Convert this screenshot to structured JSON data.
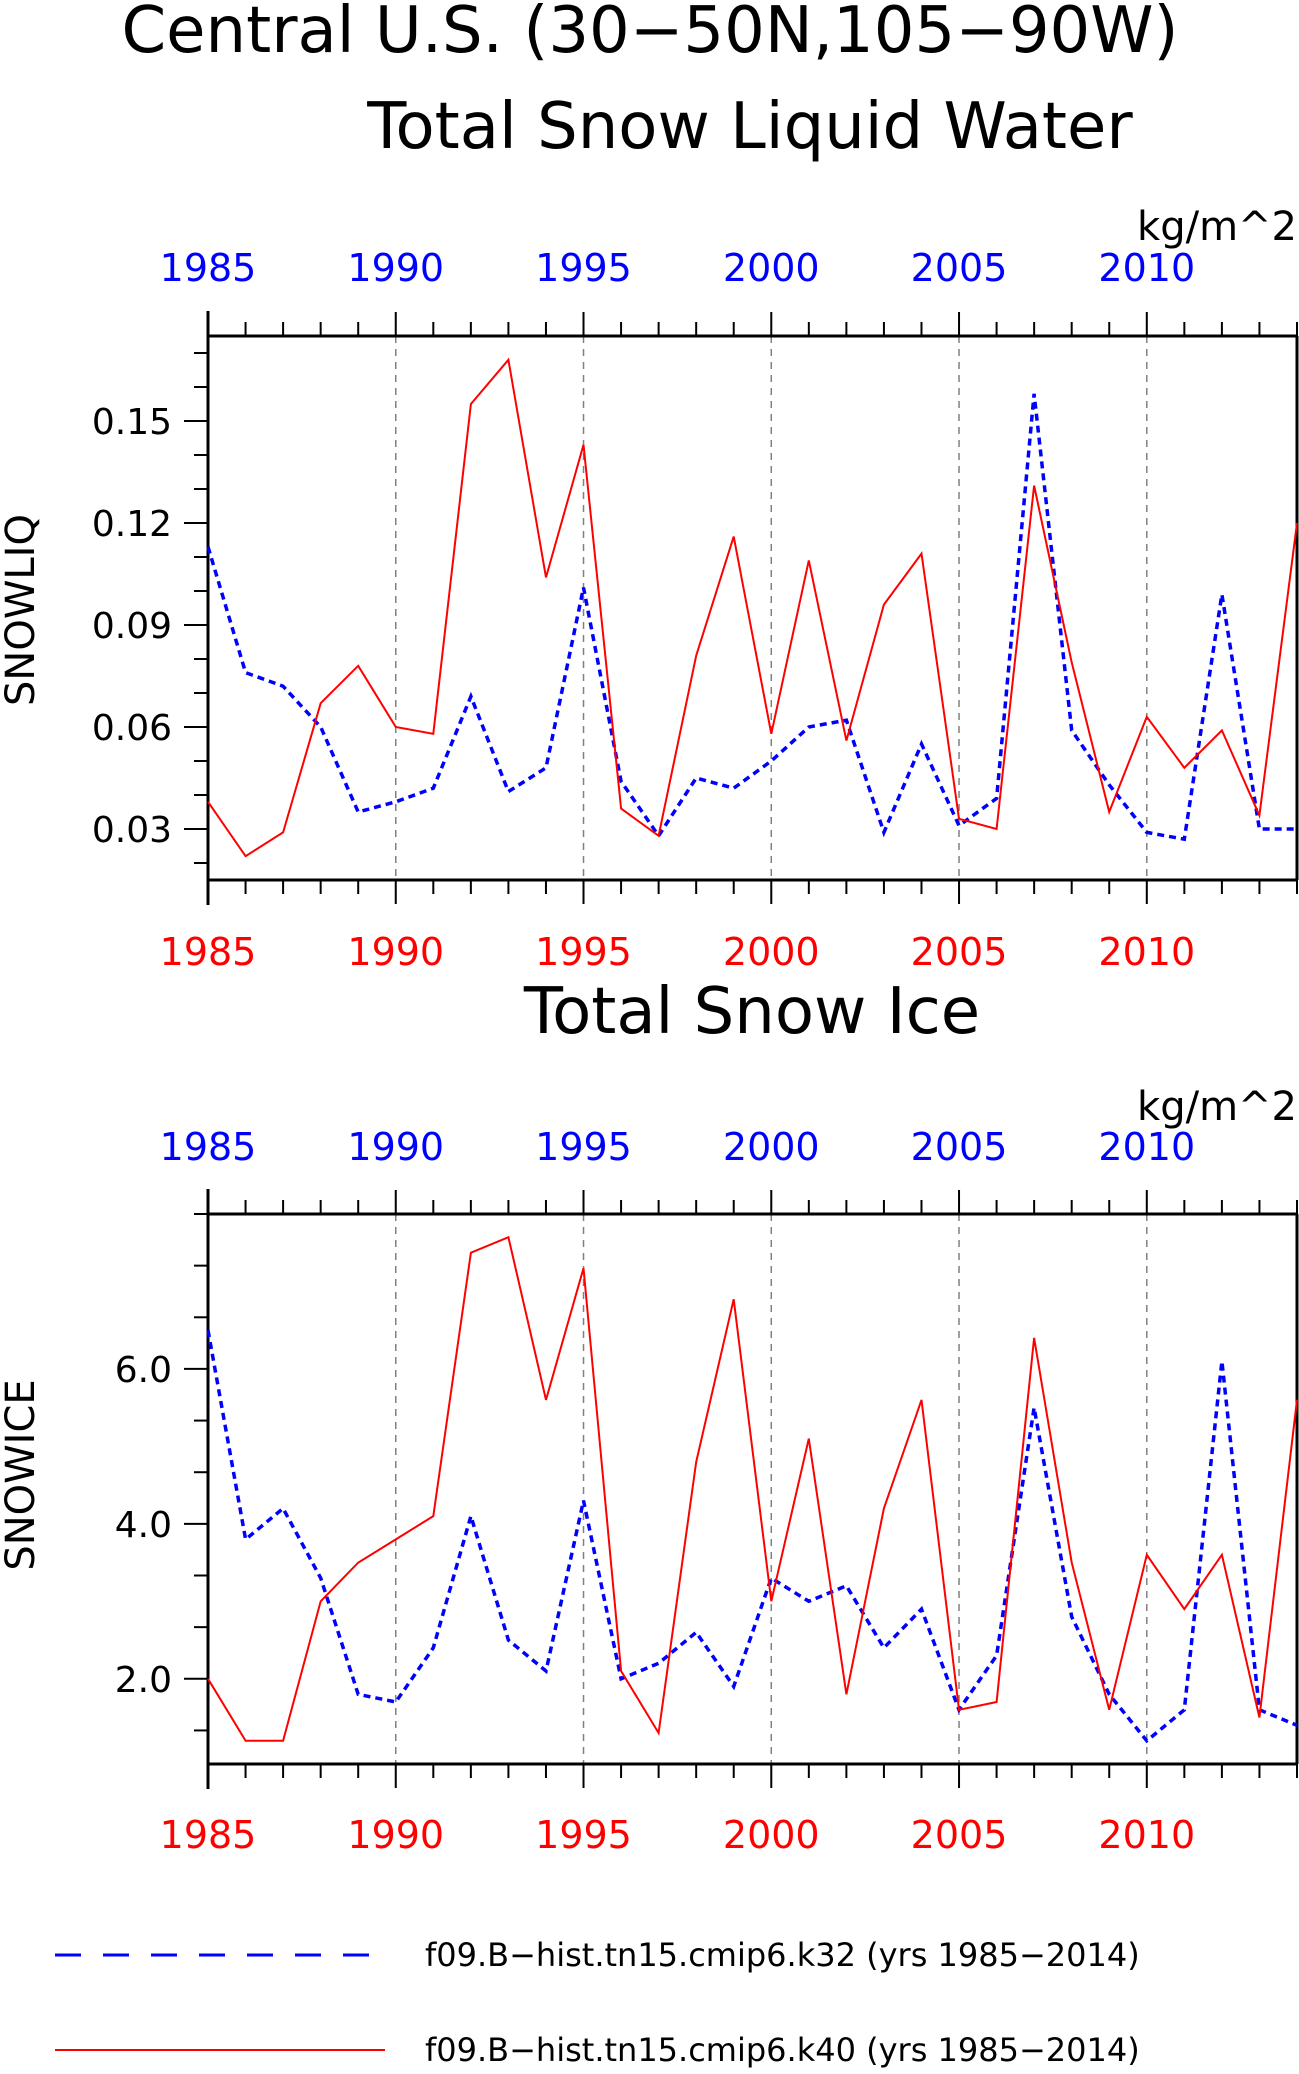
{
  "figure": {
    "title_line1": "Central U.S. (30−50N,105−90W)",
    "title_line2": "Total Snow Liquid Water",
    "panel2_title": "Total Snow Ice"
  },
  "colors": {
    "k32": "#0000ff",
    "k40": "#ff0000",
    "axis": "#000000",
    "grid": "#808080"
  },
  "legend": {
    "k32_label": "f09.B−hist.tn15.cmip6.k32 (yrs 1985−2014)",
    "k40_label": "f09.B−hist.tn15.cmip6.k40 (yrs 1985−2014)"
  },
  "chart_data": [
    {
      "type": "line",
      "title": "Total Snow Liquid Water",
      "ylabel": "SNOWLIQ",
      "units": "kg/m^2",
      "xlim": [
        1985,
        2014
      ],
      "ylim": [
        0.015,
        0.175
      ],
      "yticks": [
        0.03,
        0.06,
        0.09,
        0.12,
        0.15
      ],
      "ytick_labels": [
        "0.03",
        "0.06",
        "0.09",
        "0.12",
        "0.15"
      ],
      "xtick_labels": [
        "1985",
        "1990",
        "1995",
        "2000",
        "2005",
        "2010"
      ],
      "xticks": [
        1985,
        1990,
        1995,
        2000,
        2005,
        2010
      ],
      "grid": "vertical dashed at 1990, 1995, 2000, 2005, 2010",
      "x": [
        1985,
        1986,
        1987,
        1988,
        1989,
        1990,
        1991,
        1992,
        1993,
        1994,
        1995,
        1996,
        1997,
        1998,
        1999,
        2000,
        2001,
        2002,
        2003,
        2004,
        2005,
        2006,
        2007,
        2008,
        2009,
        2010,
        2011,
        2012,
        2013,
        2014
      ],
      "series": [
        {
          "name": "f09.B−hist.tn15.cmip6.k32 (yrs 1985−2014)",
          "style": "dashed",
          "values": [
            0.113,
            0.076,
            0.072,
            0.06,
            0.035,
            0.038,
            0.042,
            0.069,
            0.041,
            0.048,
            0.101,
            0.044,
            0.028,
            0.045,
            0.042,
            0.05,
            0.06,
            0.062,
            0.029,
            0.055,
            0.031,
            0.039,
            0.158,
            0.059,
            0.043,
            0.029,
            0.027,
            0.099,
            0.03,
            0.03
          ]
        },
        {
          "name": "f09.B−hist.tn15.cmip6.k40 (yrs 1985−2014)",
          "style": "solid",
          "values": [
            0.038,
            0.022,
            0.029,
            0.067,
            0.078,
            0.06,
            0.058,
            0.155,
            0.168,
            0.104,
            0.143,
            0.036,
            0.028,
            0.081,
            0.116,
            0.058,
            0.109,
            0.056,
            0.096,
            0.111,
            0.033,
            0.03,
            0.131,
            0.079,
            0.035,
            0.063,
            0.048,
            0.059,
            0.034,
            0.12
          ]
        }
      ]
    },
    {
      "type": "line",
      "title": "Total Snow Ice",
      "ylabel": "SNOWICE",
      "units": "kg/m^2",
      "xlim": [
        1985,
        2014
      ],
      "ylim": [
        0.9,
        8.0
      ],
      "yticks": [
        2.0,
        4.0,
        6.0
      ],
      "ytick_labels": [
        "2.0",
        "4.0",
        "6.0"
      ],
      "xtick_labels": [
        "1985",
        "1990",
        "1995",
        "2000",
        "2005",
        "2010"
      ],
      "xticks": [
        1985,
        1990,
        1995,
        2000,
        2005,
        2010
      ],
      "grid": "vertical dashed at 1990, 1995, 2000, 2005, 2010",
      "x": [
        1985,
        1986,
        1987,
        1988,
        1989,
        1990,
        1991,
        1992,
        1993,
        1994,
        1995,
        1996,
        1997,
        1998,
        1999,
        2000,
        2001,
        2002,
        2003,
        2004,
        2005,
        2006,
        2007,
        2008,
        2009,
        2010,
        2011,
        2012,
        2013,
        2014
      ],
      "series": [
        {
          "name": "f09.B−hist.tn15.cmip6.k32 (yrs 1985−2014)",
          "style": "dashed",
          "values": [
            6.5,
            3.8,
            4.2,
            3.3,
            1.8,
            1.7,
            2.4,
            4.1,
            2.5,
            2.1,
            4.3,
            2.0,
            2.2,
            2.6,
            1.9,
            3.3,
            3.0,
            3.2,
            2.4,
            2.9,
            1.6,
            2.3,
            5.5,
            2.8,
            1.8,
            1.2,
            1.6,
            6.1,
            1.6,
            1.4
          ]
        },
        {
          "name": "f09.B−hist.tn15.cmip6.k40 (yrs 1985−2014)",
          "style": "solid",
          "values": [
            2.0,
            1.2,
            1.2,
            3.0,
            3.5,
            3.8,
            4.1,
            7.5,
            7.7,
            5.6,
            7.3,
            2.1,
            1.3,
            4.8,
            6.9,
            3.0,
            5.1,
            1.8,
            4.2,
            5.6,
            1.6,
            1.7,
            6.4,
            3.5,
            1.6,
            3.6,
            2.9,
            3.6,
            1.5,
            5.6
          ]
        }
      ]
    }
  ]
}
